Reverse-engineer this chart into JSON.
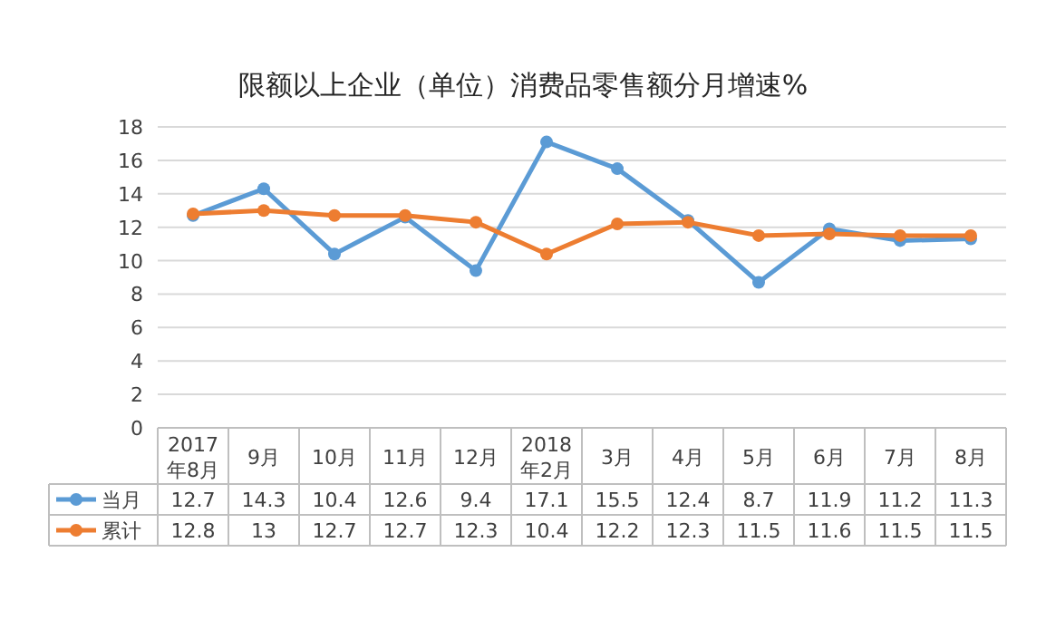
{
  "chart_data": {
    "type": "line",
    "title": "限额以上企业（单位）消费品零售额分月增速%",
    "categories": [
      "2017年8月",
      "9月",
      "10月",
      "11月",
      "12月",
      "2018年2月",
      "3月",
      "4月",
      "5月",
      "6月",
      "7月",
      "8月"
    ],
    "series": [
      {
        "name": "当月",
        "color": "#5b9bd5",
        "values": [
          12.7,
          14.3,
          10.4,
          12.6,
          9.4,
          17.1,
          15.5,
          12.4,
          8.7,
          11.9,
          11.2,
          11.3
        ]
      },
      {
        "name": "累计",
        "color": "#ed7d31",
        "values": [
          12.8,
          13,
          12.7,
          12.7,
          12.3,
          10.4,
          12.2,
          12.3,
          11.5,
          11.6,
          11.5,
          11.5
        ]
      }
    ],
    "ylim": [
      0,
      18
    ],
    "yticks": [
      0,
      2,
      4,
      6,
      8,
      10,
      12,
      14,
      16,
      18
    ],
    "grid": "y",
    "marker": "circle",
    "line_style": "solid",
    "legend": "bottom",
    "data_labels": true
  }
}
